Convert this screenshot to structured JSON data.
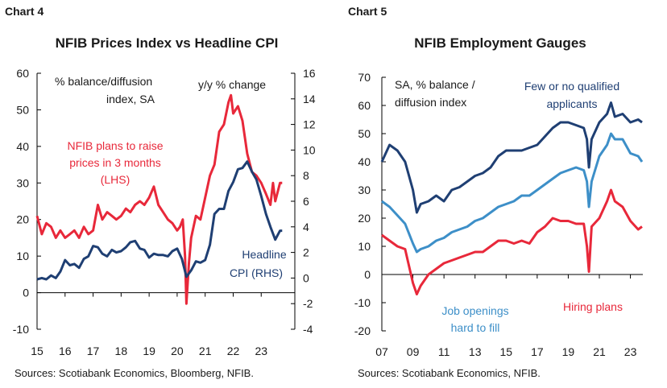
{
  "colors": {
    "red": "#e8283a",
    "navy": "#1f3f73",
    "lightblue": "#3d8fc8",
    "axis": "#000000"
  },
  "chart_data": [
    {
      "type": "line",
      "label": "Chart 4",
      "title": "NFIB Prices Index vs Headline CPI",
      "source": "Sources: Scotiabank Economics, Bloomberg, NFIB.",
      "ylabel_left": "% balance/diffusion index, SA",
      "ylabel_right": "y/y % change",
      "ylim_left": [
        -10,
        60
      ],
      "ylim_right": [
        -4,
        16
      ],
      "yticks_left": [
        -10,
        0,
        10,
        20,
        30,
        40,
        50,
        60
      ],
      "yticks_right": [
        -4,
        -2,
        0,
        2,
        4,
        6,
        8,
        10,
        12,
        14,
        16
      ],
      "xlim": [
        2015,
        2024.2
      ],
      "xticks": [
        "15",
        "16",
        "17",
        "18",
        "19",
        "20",
        "21",
        "22",
        "23"
      ],
      "series": [
        {
          "name": "NFIB plans to raise prices in 3 months (LHS)",
          "axis": "left",
          "color": "red",
          "x": [
            2015.0,
            2015.17,
            2015.33,
            2015.5,
            2015.67,
            2015.83,
            2016.0,
            2016.17,
            2016.33,
            2016.5,
            2016.67,
            2016.83,
            2017.0,
            2017.17,
            2017.33,
            2017.5,
            2017.67,
            2017.83,
            2018.0,
            2018.17,
            2018.33,
            2018.5,
            2018.67,
            2018.83,
            2019.0,
            2019.17,
            2019.33,
            2019.5,
            2019.67,
            2019.83,
            2020.0,
            2020.1,
            2020.2,
            2020.28,
            2020.33,
            2020.42,
            2020.5,
            2020.67,
            2020.83,
            2021.0,
            2021.17,
            2021.33,
            2021.5,
            2021.67,
            2021.83,
            2021.92,
            2022.0,
            2022.17,
            2022.33,
            2022.5,
            2022.67,
            2022.83,
            2023.0,
            2023.17,
            2023.33,
            2023.42,
            2023.5,
            2023.67,
            2023.75
          ],
          "values": [
            21,
            16,
            19,
            18,
            15,
            17,
            15,
            16,
            17,
            15,
            18,
            16,
            17,
            24,
            20,
            22,
            21,
            20,
            21,
            23,
            22,
            24,
            25,
            24,
            26,
            29,
            24,
            22,
            20,
            19,
            17,
            18,
            20,
            10,
            -3,
            8,
            15,
            21,
            20,
            26,
            32,
            35,
            44,
            46,
            52,
            54,
            49,
            51,
            47,
            38,
            33,
            32,
            30,
            27,
            24,
            30,
            25,
            30,
            30
          ]
        },
        {
          "name": "Headline CPI (RHS)",
          "axis": "right",
          "color": "navy",
          "x": [
            2015.0,
            2015.17,
            2015.33,
            2015.5,
            2015.67,
            2015.83,
            2016.0,
            2016.17,
            2016.33,
            2016.5,
            2016.67,
            2016.83,
            2017.0,
            2017.17,
            2017.33,
            2017.5,
            2017.67,
            2017.83,
            2018.0,
            2018.17,
            2018.33,
            2018.5,
            2018.67,
            2018.83,
            2019.0,
            2019.17,
            2019.33,
            2019.5,
            2019.67,
            2019.83,
            2020.0,
            2020.17,
            2020.33,
            2020.5,
            2020.67,
            2020.83,
            2021.0,
            2021.17,
            2021.33,
            2021.5,
            2021.67,
            2021.83,
            2022.0,
            2022.17,
            2022.33,
            2022.5,
            2022.67,
            2022.83,
            2023.0,
            2023.17,
            2023.33,
            2023.5,
            2023.67,
            2023.75
          ],
          "values": [
            -0.1,
            0,
            -0.1,
            0.2,
            0,
            0.5,
            1.4,
            1,
            1.1,
            0.8,
            1.5,
            1.7,
            2.5,
            2.4,
            1.9,
            1.7,
            2.2,
            2,
            2.1,
            2.4,
            2.8,
            2.9,
            2.3,
            2.2,
            1.6,
            1.9,
            1.8,
            1.8,
            1.7,
            2.1,
            2.3,
            1.5,
            0.1,
            0.6,
            1.3,
            1.2,
            1.4,
            2.6,
            5,
            5.4,
            5.4,
            6.8,
            7.5,
            8.5,
            8.6,
            9.1,
            8.3,
            7.7,
            6.4,
            5,
            4,
            3,
            3.7,
            3.7
          ]
        }
      ],
      "annotations": [
        "NFIB plans to raise",
        "prices in 3 months",
        "(LHS)",
        "Headline",
        "CPI (RHS)"
      ]
    },
    {
      "type": "line",
      "label": "Chart 5",
      "title": "NFIB Employment Gauges",
      "source": "Sources: Scotiabank Economics, NFIB.",
      "ylabel": "SA, % balance / diffusion index",
      "ylim": [
        -20,
        70
      ],
      "yticks": [
        -20,
        -10,
        0,
        10,
        20,
        30,
        40,
        50,
        60,
        70
      ],
      "xlim": [
        2007,
        2023.8
      ],
      "xticks": [
        "07",
        "09",
        "11",
        "13",
        "15",
        "17",
        "19",
        "21",
        "23"
      ],
      "series": [
        {
          "name": "Few or no qualified applicants",
          "color": "navy",
          "x": [
            2007.0,
            2007.5,
            2008.0,
            2008.5,
            2009.0,
            2009.25,
            2009.5,
            2010.0,
            2010.5,
            2011.0,
            2011.5,
            2012.0,
            2012.5,
            2013.0,
            2013.5,
            2014.0,
            2014.5,
            2015.0,
            2015.5,
            2016.0,
            2016.5,
            2017.0,
            2017.5,
            2018.0,
            2018.5,
            2019.0,
            2019.5,
            2020.0,
            2020.2,
            2020.33,
            2020.5,
            2021.0,
            2021.5,
            2021.75,
            2022.0,
            2022.5,
            2023.0,
            2023.5,
            2023.75
          ],
          "values": [
            40,
            46,
            44,
            40,
            30,
            22,
            25,
            26,
            28,
            26,
            30,
            31,
            33,
            35,
            36,
            38,
            42,
            44,
            44,
            44,
            45,
            46,
            49,
            52,
            54,
            54,
            53,
            52,
            48,
            38,
            48,
            54,
            57,
            61,
            56,
            57,
            54,
            55,
            54
          ]
        },
        {
          "name": "Job openings hard to fill",
          "color": "lightblue",
          "x": [
            2007.0,
            2007.5,
            2008.0,
            2008.5,
            2009.0,
            2009.25,
            2009.5,
            2010.0,
            2010.5,
            2011.0,
            2011.5,
            2012.0,
            2012.5,
            2013.0,
            2013.5,
            2014.0,
            2014.5,
            2015.0,
            2015.5,
            2016.0,
            2016.5,
            2017.0,
            2017.5,
            2018.0,
            2018.5,
            2019.0,
            2019.5,
            2020.0,
            2020.2,
            2020.33,
            2020.5,
            2021.0,
            2021.5,
            2021.75,
            2022.0,
            2022.5,
            2023.0,
            2023.5,
            2023.75
          ],
          "values": [
            26,
            24,
            21,
            18,
            11,
            8,
            9,
            10,
            12,
            13,
            15,
            16,
            17,
            19,
            20,
            22,
            24,
            25,
            26,
            28,
            28,
            30,
            32,
            34,
            36,
            37,
            38,
            37,
            33,
            24,
            33,
            42,
            46,
            50,
            48,
            48,
            43,
            42,
            40
          ]
        },
        {
          "name": "Hiring plans",
          "color": "red",
          "x": [
            2007.0,
            2007.5,
            2008.0,
            2008.5,
            2009.0,
            2009.25,
            2009.5,
            2010.0,
            2010.5,
            2011.0,
            2011.5,
            2012.0,
            2012.5,
            2013.0,
            2013.5,
            2014.0,
            2014.5,
            2015.0,
            2015.5,
            2016.0,
            2016.5,
            2017.0,
            2017.5,
            2018.0,
            2018.5,
            2019.0,
            2019.5,
            2020.0,
            2020.2,
            2020.33,
            2020.5,
            2021.0,
            2021.5,
            2021.75,
            2022.0,
            2022.5,
            2023.0,
            2023.5,
            2023.75
          ],
          "values": [
            14,
            12,
            10,
            9,
            -3,
            -7,
            -4,
            0,
            2,
            4,
            5,
            6,
            7,
            8,
            8,
            10,
            12,
            12,
            11,
            12,
            11,
            15,
            17,
            20,
            19,
            19,
            18,
            18,
            10,
            1,
            17,
            20,
            26,
            30,
            26,
            24,
            19,
            16,
            17
          ]
        }
      ],
      "annotations": [
        "Few or no qualified",
        "applicants",
        "Job openings",
        "hard to fill",
        "Hiring plans"
      ]
    }
  ]
}
